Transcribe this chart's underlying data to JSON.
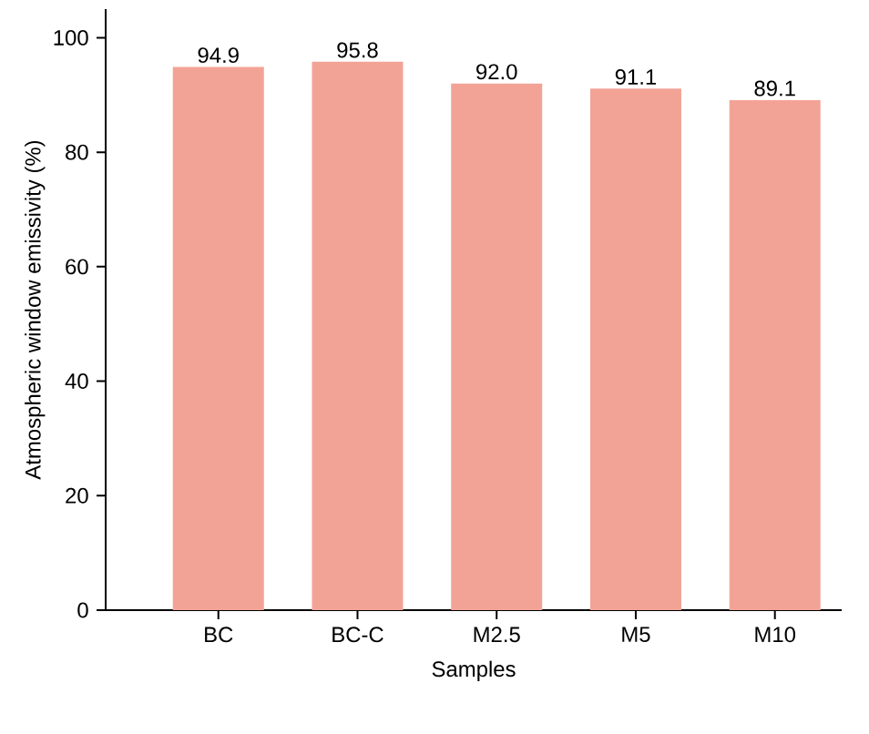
{
  "chart_data": {
    "type": "bar",
    "xlabel": "Samples",
    "ylabel": "Atmospheric window emissivity (%)",
    "categories": [
      "BC",
      "BC-C",
      "M2.5",
      "M5",
      "M10"
    ],
    "values": [
      94.9,
      95.8,
      92.0,
      91.1,
      89.1
    ],
    "value_labels": [
      "94.9",
      "95.8",
      "92.0",
      "91.1",
      "89.1"
    ],
    "color": "#f2a396",
    "ylim": [
      0,
      105
    ],
    "yticks": [
      0,
      20,
      40,
      60,
      80,
      100
    ],
    "grid": false
  }
}
